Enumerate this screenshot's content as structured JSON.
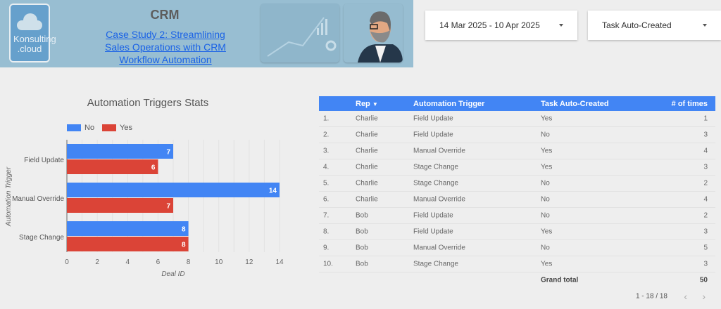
{
  "header": {
    "logo_text": "Konsulting .cloud",
    "title": "CRM",
    "link": "Case Study 2: Streamlining Sales Operations with CRM Workflow Automation"
  },
  "filters": {
    "date_range": "14 Mar 2025 - 10 Apr 2025",
    "task_filter": "Task Auto-Created"
  },
  "colors": {
    "no": "#4285f4",
    "yes": "#db4437",
    "header_bg": "#98bed2"
  },
  "chart_data": {
    "type": "bar",
    "orientation": "horizontal",
    "title": "Automation Triggers Stats",
    "xlabel": "Deal ID",
    "ylabel": "Automation Trigger",
    "categories": [
      "Field Update",
      "Manual Override",
      "Stage Change"
    ],
    "series": [
      {
        "name": "No",
        "values": [
          7,
          14,
          8
        ]
      },
      {
        "name": "Yes",
        "values": [
          6,
          7,
          8
        ]
      }
    ],
    "xlim": [
      0,
      14
    ],
    "xticks": [
      0,
      2,
      4,
      6,
      8,
      10,
      12,
      14
    ],
    "grid": true,
    "legend": "top-left"
  },
  "table": {
    "columns": [
      "Rep",
      "Automation Trigger",
      "Task Auto-Created",
      "# of times"
    ],
    "sort_icon": "caret-down-icon",
    "rows": [
      [
        "1.",
        "Charlie",
        "Field Update",
        "Yes",
        "1"
      ],
      [
        "2.",
        "Charlie",
        "Field Update",
        "No",
        "3"
      ],
      [
        "3.",
        "Charlie",
        "Manual Override",
        "Yes",
        "4"
      ],
      [
        "4.",
        "Charlie",
        "Stage Change",
        "Yes",
        "3"
      ],
      [
        "5.",
        "Charlie",
        "Stage Change",
        "No",
        "2"
      ],
      [
        "6.",
        "Charlie",
        "Manual Override",
        "No",
        "4"
      ],
      [
        "7.",
        "Bob",
        "Field Update",
        "No",
        "2"
      ],
      [
        "8.",
        "Bob",
        "Field Update",
        "Yes",
        "3"
      ],
      [
        "9.",
        "Bob",
        "Manual Override",
        "No",
        "5"
      ],
      [
        "10.",
        "Bob",
        "Stage Change",
        "Yes",
        "3"
      ]
    ],
    "grand_total_label": "Grand total",
    "grand_total": "50",
    "pagination": "1 - 18 / 18"
  }
}
